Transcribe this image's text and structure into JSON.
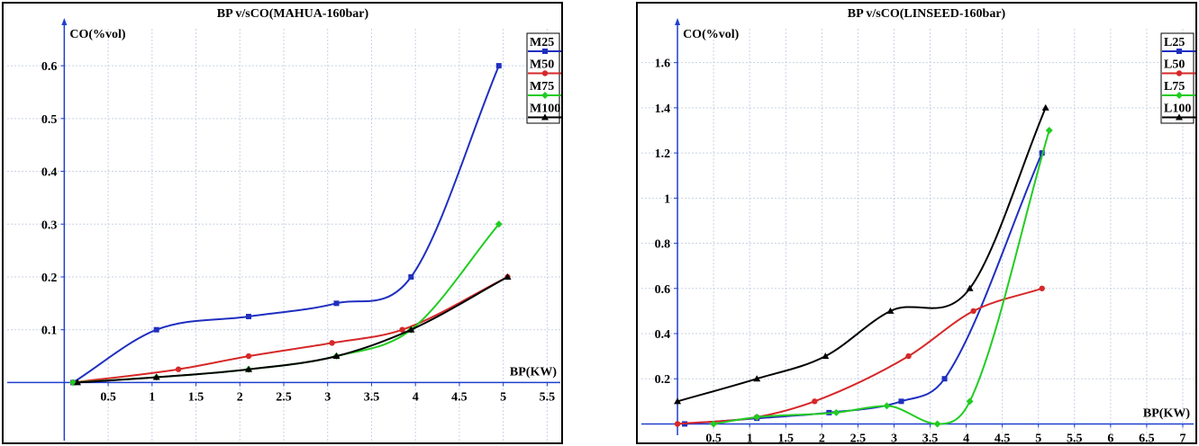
{
  "chart_data": [
    {
      "type": "line",
      "title": "BP v/sCO(MAHUA-160bar)",
      "xlabel": "BP(KW)",
      "ylabel": "CO(%vol)",
      "xlim": [
        -0.65,
        5.65
      ],
      "ylim": [
        -0.11,
        0.67
      ],
      "xticks": [
        0.5,
        1,
        1.5,
        2,
        2.5,
        3,
        3.5,
        4,
        4.5,
        5,
        5.5
      ],
      "xtick_labels": [
        "0.5",
        "1",
        "1.5",
        "2",
        "2.5",
        "3",
        "3.5",
        "4",
        "4.5",
        "5",
        "5.5"
      ],
      "yticks": [
        0.1,
        0.2,
        0.3,
        0.4,
        0.5,
        0.6
      ],
      "ytick_labels": [
        "0.1",
        "0.2",
        "0.3",
        "0.4",
        "0.5",
        "0.6"
      ],
      "grid": true,
      "legend_position": "top-right",
      "series": [
        {
          "name": "M25",
          "color": "#1f2fbf",
          "marker": "square",
          "x": [
            0.1,
            1.05,
            2.1,
            3.1,
            3.95,
            4.95
          ],
          "y": [
            0,
            0.1,
            0.125,
            0.15,
            0.2,
            0.6
          ]
        },
        {
          "name": "M50",
          "color": "#d62828",
          "marker": "circle",
          "x": [
            0.1,
            1.3,
            2.1,
            3.05,
            3.85,
            5.05
          ],
          "y": [
            0,
            0.025,
            0.05,
            0.075,
            0.1,
            0.2
          ]
        },
        {
          "name": "M75",
          "color": "#22cc22",
          "marker": "diamond",
          "x": [
            0.1,
            1.05,
            2.1,
            3.1,
            3.95,
            4.95
          ],
          "y": [
            0,
            0.01,
            0.025,
            0.05,
            0.1,
            0.3
          ]
        },
        {
          "name": "M100",
          "color": "#000000",
          "marker": "triangle",
          "x": [
            0.15,
            1.05,
            2.1,
            3.1,
            3.95,
            5.05
          ],
          "y": [
            0,
            0.01,
            0.025,
            0.05,
            0.1,
            0.2
          ]
        }
      ]
    },
    {
      "type": "line",
      "title": "BP v/sCO(LINSEED-160bar)",
      "xlabel": "BP(KW)",
      "ylabel": "CO(%vol)",
      "xlim": [
        -0.5,
        7.15
      ],
      "ylim": [
        -0.05,
        1.75
      ],
      "xticks": [
        0.5,
        1,
        1.5,
        2,
        2.5,
        3,
        3.5,
        4,
        4.5,
        5,
        5.5,
        6,
        6.5,
        7
      ],
      "xtick_labels": [
        "0.5",
        "1",
        "1.5",
        "2",
        "2.5",
        "3",
        "3.5",
        "4",
        "4.5",
        "5",
        "5.5",
        "6",
        "6.5",
        "7"
      ],
      "yticks": [
        0.2,
        0.4,
        0.6,
        0.8,
        1,
        1.2,
        1.4,
        1.6
      ],
      "ytick_labels": [
        "0.2",
        "0.4",
        "0.6",
        "0.8",
        "1",
        "1.2",
        "1.4",
        "1.6"
      ],
      "grid": true,
      "legend_position": "top-right",
      "series": [
        {
          "name": "L25",
          "color": "#1f2fbf",
          "marker": "square",
          "x": [
            0.1,
            1.1,
            2.1,
            3.1,
            3.7,
            5.05
          ],
          "y": [
            0,
            0.025,
            0.05,
            0.1,
            0.2,
            1.2
          ]
        },
        {
          "name": "L50",
          "color": "#d62828",
          "marker": "circle",
          "x": [
            0,
            1.1,
            1.9,
            3.2,
            4.1,
            5.05
          ],
          "y": [
            0,
            0.03,
            0.1,
            0.3,
            0.5,
            0.6
          ]
        },
        {
          "name": "L75",
          "color": "#22cc22",
          "marker": "diamond",
          "x": [
            0.5,
            1.1,
            2.2,
            2.9,
            3.6,
            4.05,
            5.15
          ],
          "y": [
            0,
            0.03,
            0.05,
            0.08,
            0,
            0.1,
            1.3
          ]
        },
        {
          "name": "L100",
          "color": "#000000",
          "marker": "triangle",
          "x": [
            0,
            1.1,
            2.05,
            2.95,
            4.05,
            5.1
          ],
          "y": [
            0.1,
            0.2,
            0.3,
            0.5,
            0.6,
            1.4
          ]
        }
      ]
    }
  ]
}
